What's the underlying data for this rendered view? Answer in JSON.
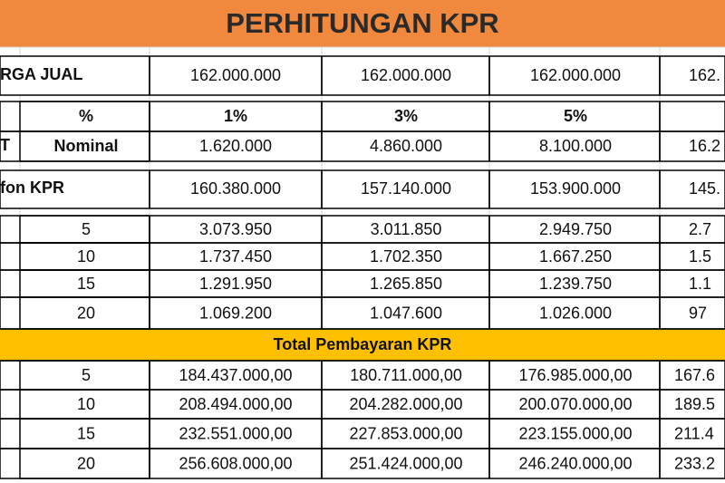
{
  "header": {
    "title": "PERHITUNGAN KPR"
  },
  "harga_jual": {
    "label": "RGA JUAL",
    "values": [
      "162.000.000",
      "162.000.000",
      "162.000.000",
      "162."
    ]
  },
  "dp": {
    "label": "T",
    "percent_label": "%",
    "percents": [
      "1%",
      "3%",
      "5%"
    ],
    "nominal_label": "Nominal",
    "nominals": [
      "1.620.000",
      "4.860.000",
      "8.100.000",
      "16.2"
    ]
  },
  "plafon": {
    "label": "fon KPR",
    "values": [
      "160.380.000",
      "157.140.000",
      "153.900.000",
      "145."
    ]
  },
  "angsuran": {
    "rows": [
      {
        "tenor": "5",
        "values": [
          "3.073.950",
          "3.011.850",
          "2.949.750",
          "2.7"
        ]
      },
      {
        "tenor": "10",
        "values": [
          "1.737.450",
          "1.702.350",
          "1.667.250",
          "1.5"
        ]
      },
      {
        "tenor": "15",
        "values": [
          "1.291.950",
          "1.265.850",
          "1.239.750",
          "1.1"
        ]
      },
      {
        "tenor": "20",
        "values": [
          "1.069.200",
          "1.047.600",
          "1.026.000",
          "97"
        ]
      }
    ]
  },
  "total": {
    "title": "Total Pembayaran KPR",
    "rows": [
      {
        "tenor": "5",
        "values": [
          "184.437.000,00",
          "180.711.000,00",
          "176.985.000,00",
          "167.6"
        ]
      },
      {
        "tenor": "10",
        "values": [
          "208.494.000,00",
          "204.282.000,00",
          "200.070.000,00",
          "189.5"
        ]
      },
      {
        "tenor": "15",
        "values": [
          "232.551.000,00",
          "227.853.000,00",
          "223.155.000,00",
          "211.4"
        ]
      },
      {
        "tenor": "20",
        "values": [
          "256.608.000,00",
          "251.424.000,00",
          "246.240.000,00",
          "233.2"
        ]
      }
    ]
  }
}
